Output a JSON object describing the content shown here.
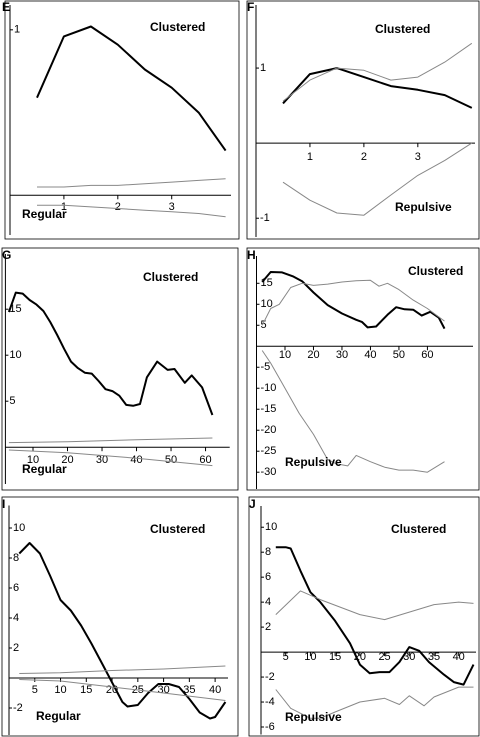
{
  "chart_data": [
    {
      "type": "line",
      "panel": "E",
      "annotations": [
        "Clustered",
        "Regular"
      ],
      "xlim": [
        0,
        4.1
      ],
      "ylim": [
        -0.24,
        1.15
      ],
      "xticks": [
        1,
        2,
        3
      ],
      "yticks": [
        1
      ],
      "series": [
        {
          "color": "#000000",
          "line_width": 2,
          "x": [
            0.5,
            1,
            1.5,
            2,
            2.5,
            3,
            3.5,
            4
          ],
          "values": [
            0.59,
            0.96,
            1.02,
            0.91,
            0.76,
            0.65,
            0.5,
            0.27
          ]
        },
        {
          "color": "#888888",
          "line_width": 1,
          "x": [
            0.5,
            1,
            1.5,
            2,
            2.5,
            3,
            3.5,
            4
          ],
          "values": [
            0.05,
            0.05,
            0.06,
            0.06,
            0.07,
            0.08,
            0.09,
            0.1
          ]
        },
        {
          "color": "#888888",
          "line_width": 1,
          "x": [
            0.5,
            1,
            1.5,
            2,
            2.5,
            3,
            3.5,
            4
          ],
          "values": [
            -0.06,
            -0.06,
            -0.07,
            -0.08,
            -0.09,
            -0.1,
            -0.11,
            -0.13
          ]
        }
      ]
    },
    {
      "type": "line",
      "panel": "F",
      "annotations": [
        "Clustered",
        "Repulsive"
      ],
      "xlim": [
        0,
        4.06
      ],
      "ylim": [
        -1.25,
        1.84
      ],
      "xticks": [
        1,
        2,
        3
      ],
      "yticks": [
        -1,
        1
      ],
      "series": [
        {
          "color": "#000000",
          "line_width": 2,
          "x": [
            0.5,
            1,
            1.5,
            2,
            2.5,
            3,
            3.5,
            4
          ],
          "values": [
            0.53,
            0.92,
            1.0,
            0.88,
            0.76,
            0.71,
            0.64,
            0.47
          ]
        },
        {
          "color": "#888888",
          "line_width": 1,
          "x": [
            0.5,
            1,
            1.5,
            2,
            2.5,
            3,
            3.5,
            4
          ],
          "values": [
            0.56,
            0.84,
            1.0,
            0.97,
            0.84,
            0.88,
            1.08,
            1.33
          ]
        },
        {
          "color": "#888888",
          "line_width": 1,
          "x": [
            0.5,
            1,
            1.5,
            2,
            2.5,
            3,
            3.5,
            4
          ],
          "values": [
            -0.52,
            -0.76,
            -0.93,
            -0.96,
            -0.69,
            -0.43,
            -0.23,
            0
          ]
        }
      ]
    },
    {
      "type": "line",
      "panel": "G",
      "annotations": [
        "Clustered",
        "Regular"
      ],
      "xlim": [
        2,
        67
      ],
      "ylim": [
        -4,
        21
      ],
      "xticks": [
        10,
        20,
        30,
        40,
        50,
        60
      ],
      "yticks": [
        5,
        10,
        15
      ],
      "series": [
        {
          "color": "#000000",
          "line_width": 2,
          "x": [
            3,
            5,
            7,
            9,
            11,
            13,
            15,
            17,
            19,
            21,
            23,
            25,
            27,
            29,
            31,
            33,
            35,
            37,
            39,
            41,
            43,
            46,
            49,
            51,
            54,
            56,
            59,
            62
          ],
          "values": [
            14.7,
            16.8,
            16.7,
            16,
            15.5,
            14.8,
            13.6,
            12.2,
            10.7,
            9.3,
            8.6,
            8.1,
            8.0,
            7.2,
            6.3,
            6.1,
            5.6,
            4.6,
            4.5,
            4.7,
            7.6,
            9.3,
            8.4,
            8.5,
            7.0,
            7.8,
            6.5,
            3.5
          ]
        },
        {
          "color": "#888888",
          "line_width": 1,
          "x": [
            3,
            20,
            40,
            62
          ],
          "values": [
            0.5,
            0.6,
            0.8,
            1.0
          ]
        },
        {
          "color": "#888888",
          "line_width": 1,
          "x": [
            3,
            20,
            40,
            62
          ],
          "values": [
            -0.3,
            -0.6,
            -1.2,
            -2.0
          ]
        }
      ]
    },
    {
      "type": "line",
      "panel": "H",
      "annotations": [
        "Clustered",
        "Repulsive"
      ],
      "xlim": [
        0,
        76
      ],
      "ylim": [
        -34,
        21.5
      ],
      "xticks": [
        10,
        20,
        30,
        40,
        50,
        60
      ],
      "yticks": [
        -30,
        -25,
        -20,
        -15,
        -10,
        -5,
        5,
        10,
        15
      ],
      "series": [
        {
          "color": "#000000",
          "line_width": 2,
          "x": [
            2,
            5,
            9,
            13,
            16,
            20,
            25,
            30,
            35,
            37,
            39,
            42,
            46,
            49,
            52,
            55,
            58,
            61,
            64,
            66
          ],
          "values": [
            15.3,
            17.7,
            17.6,
            16.6,
            15.5,
            12.8,
            9.8,
            7.8,
            6.3,
            5.8,
            4.5,
            4.7,
            7.5,
            9.3,
            8.8,
            8.7,
            7.3,
            8.2,
            6.8,
            4.2
          ]
        },
        {
          "color": "#888888",
          "line_width": 1,
          "x": [
            2,
            5,
            8,
            12,
            16,
            20,
            25,
            30,
            35,
            40,
            43,
            46,
            50,
            55,
            60,
            66
          ],
          "values": [
            5,
            9,
            10,
            14,
            15,
            14.5,
            14.8,
            15.3,
            15.6,
            15.7,
            14.3,
            15,
            13.5,
            11,
            9,
            6
          ]
        },
        {
          "color": "#888888",
          "line_width": 1,
          "x": [
            2,
            5,
            10,
            15,
            20,
            25,
            28,
            32,
            35,
            40,
            45,
            50,
            55,
            60,
            66
          ],
          "values": [
            -1,
            -4,
            -10,
            -16,
            -21,
            -27,
            -28,
            -28.5,
            -26,
            -27.5,
            -28.8,
            -29.5,
            -29.5,
            -30,
            -27.5
          ]
        }
      ]
    },
    {
      "type": "line",
      "panel": "I",
      "annotations": [
        "Clustered",
        "Regular"
      ],
      "xlim": [
        0,
        42.5
      ],
      "ylim": [
        -3.8,
        11.5
      ],
      "xticks": [
        5,
        10,
        15,
        20,
        25,
        30,
        35,
        40
      ],
      "yticks": [
        -2,
        2,
        4,
        6,
        8,
        10
      ],
      "series": [
        {
          "color": "#000000",
          "line_width": 2,
          "x": [
            2,
            4,
            6,
            8,
            10,
            12,
            14,
            16,
            18,
            20,
            22,
            23,
            25,
            27,
            29,
            31,
            33,
            35,
            37,
            39,
            40,
            42
          ],
          "values": [
            8.3,
            9.0,
            8.3,
            6.8,
            5.2,
            4.5,
            3.5,
            2.3,
            1.0,
            -0.3,
            -1.6,
            -1.9,
            -1.8,
            -1.0,
            -0.4,
            -0.4,
            -0.6,
            -1.4,
            -2.3,
            -2.7,
            -2.6,
            -1.6
          ]
        },
        {
          "color": "#888888",
          "line_width": 1,
          "x": [
            2,
            10,
            20,
            30,
            42
          ],
          "values": [
            0.3,
            0.35,
            0.5,
            0.6,
            0.8
          ]
        },
        {
          "color": "#888888",
          "line_width": 1,
          "x": [
            2,
            10,
            20,
            30,
            42
          ],
          "values": [
            -0.1,
            -0.2,
            -0.6,
            -1.0,
            -1.5
          ]
        }
      ]
    },
    {
      "type": "line",
      "panel": "J",
      "annotations": [
        "Clustered",
        "Repulsive"
      ],
      "xlim": [
        0,
        43.5
      ],
      "ylim": [
        -6.6,
        11.7
      ],
      "xticks": [
        5,
        10,
        15,
        20,
        25,
        30,
        35,
        40
      ],
      "yticks": [
        -6,
        -4,
        -2,
        2,
        4,
        6,
        8,
        10
      ],
      "series": [
        {
          "color": "#000000",
          "line_width": 2,
          "x": [
            3,
            5,
            6,
            8,
            10,
            12,
            15,
            18,
            20,
            22,
            24,
            26,
            28,
            30,
            32,
            34,
            37,
            39,
            41,
            43
          ],
          "values": [
            8.4,
            8.4,
            8.3,
            6.5,
            4.8,
            4.0,
            2.5,
            0.7,
            -1.0,
            -1.7,
            -1.6,
            -1.6,
            -0.8,
            0.4,
            0.1,
            -0.8,
            -1.8,
            -2.4,
            -2.6,
            -1.0
          ]
        },
        {
          "color": "#888888",
          "line_width": 1,
          "x": [
            3,
            8,
            12,
            16,
            20,
            25,
            30,
            35,
            40,
            43
          ],
          "values": [
            3.0,
            4.9,
            4.2,
            3.6,
            3.0,
            2.6,
            3.2,
            3.8,
            4.0,
            3.9
          ]
        },
        {
          "color": "#888888",
          "line_width": 1,
          "x": [
            3,
            6,
            10,
            12,
            15,
            20,
            25,
            28,
            30,
            33,
            35,
            40,
            43
          ],
          "values": [
            -3.0,
            -4.5,
            -5.3,
            -5.3,
            -4.8,
            -4.0,
            -3.7,
            -4.2,
            -3.5,
            -4.3,
            -3.6,
            -2.8,
            -2.8
          ]
        }
      ]
    }
  ]
}
